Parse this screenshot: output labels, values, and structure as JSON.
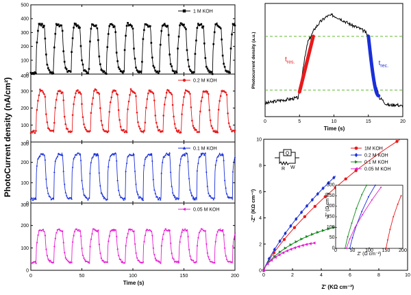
{
  "chart_data": [
    {
      "type": "line",
      "panel": "transient photoresponse (stacked)",
      "xlabel": "Time (s)",
      "ylabel": "PhotoCurrent density (nA/cm²)",
      "xlim": [
        0,
        200
      ],
      "x_ticks": [
        "0",
        "50",
        "100",
        "150",
        "200"
      ],
      "series": [
        {
          "name": "1 M KOH",
          "color": "#000000",
          "marker": "square",
          "ylim": [
            0,
            500
          ],
          "y_ticks": [
            "0",
            "100",
            "200",
            "300",
            "400",
            "500"
          ],
          "period_s": 17.3,
          "first_on_s": 5,
          "on_s": 8.6,
          "low": 10,
          "high": 380,
          "onset_level": 250,
          "peak_time_frac": 0.3
        },
        {
          "name": "0.2 M KOH",
          "color": "#e8191b",
          "marker": "circle",
          "ylim": [
            0,
            400
          ],
          "y_ticks": [
            "0",
            "100",
            "200",
            "300",
            "400"
          ],
          "period_s": 17.8,
          "first_on_s": 5,
          "on_s": 8.9,
          "low": 60,
          "high": 310,
          "onset_level": 220,
          "peak_time_frac": 0.45
        },
        {
          "name": "0.1 M KOH",
          "color": "#1a2fd8",
          "marker": "triangle",
          "ylim": [
            0,
            300
          ],
          "y_ticks": [
            "0",
            "100",
            "200",
            "300"
          ],
          "period_s": 17.5,
          "first_on_s": 5,
          "on_s": 8.75,
          "low": 20,
          "high": 240,
          "onset_level": 240,
          "peak_time_frac": 0.2
        },
        {
          "name": "0.05 M KOH",
          "color": "#e61bd1",
          "marker": "triangle-left",
          "ylim": [
            0,
            300
          ],
          "y_ticks": [
            "0",
            "100",
            "200",
            "300"
          ],
          "period_s": 17.5,
          "first_on_s": 5,
          "on_s": 8.75,
          "low": 35,
          "high": 185,
          "onset_level": 150,
          "peak_time_frac": 0.4
        }
      ]
    },
    {
      "type": "line",
      "panel": "single-cycle response schematic",
      "xlabel": "Time (s)",
      "ylabel": "Photocurrent density (a.u.)",
      "xlim": [
        0,
        20
      ],
      "x_ticks": [
        "0",
        "5",
        "10",
        "15",
        "20"
      ],
      "ylim": [
        0,
        1
      ],
      "guide_lines": [
        0.22,
        0.78
      ],
      "annotations": [
        {
          "text": "t",
          "sub": "res.",
          "color": "#e8191b"
        },
        {
          "text": "t",
          "sub": "rec.",
          "color": "#1a2fd8"
        }
      ],
      "curve": {
        "x": [
          0,
          2,
          4,
          4.8,
          5.0,
          5.5,
          6.2,
          6.8,
          7.2,
          8,
          9,
          9.8,
          10.5,
          11.5,
          12.5,
          13.5,
          14.5,
          15.0,
          15.5,
          16,
          16.6,
          17,
          17.5,
          18,
          19,
          20
        ],
        "y": [
          0.08,
          0.11,
          0.13,
          0.14,
          0.2,
          0.45,
          0.72,
          0.8,
          0.86,
          0.93,
          0.99,
          1.0,
          0.98,
          0.94,
          0.9,
          0.87,
          0.83,
          0.78,
          0.55,
          0.3,
          0.14,
          0.12,
          0.08,
          0.06,
          0.07,
          0.05
        ]
      },
      "rise_segment": {
        "x": [
          5.0,
          7.0
        ],
        "y": [
          0.2,
          0.78
        ],
        "color": "#e8191b"
      },
      "decay_segment": {
        "x": [
          15.0,
          16.5
        ],
        "y": [
          0.78,
          0.16
        ],
        "color": "#1a2fd8"
      }
    },
    {
      "type": "scatter",
      "panel": "Nyquist plot",
      "xlabel": "Z' (KΩ cm⁻²)",
      "ylabel": "-Z'' (KΩ cm⁻²)",
      "xlim": [
        0,
        10
      ],
      "ylim": [
        0,
        10
      ],
      "x_ticks": [
        "0",
        "2",
        "4",
        "6",
        "8",
        "10"
      ],
      "y_ticks": [
        "0",
        "2",
        "4",
        "6",
        "8",
        "10"
      ],
      "legend_placement": "top-right",
      "circuit_labels": [
        "Q",
        "R",
        "W"
      ],
      "series": [
        {
          "name": "1M KOH",
          "color": "#e8191b",
          "marker": "circle",
          "x_end": 9.5,
          "y_end": 10.0,
          "curvature": 0.35,
          "line_only_after": 6.6
        },
        {
          "name": "0.2 M KOH",
          "color": "#1a2fd8",
          "marker": "diamond",
          "x_end": 5.0,
          "y_end": 7.2,
          "curvature": 0.3
        },
        {
          "name": "0.1 M KOH",
          "color": "#138a1e",
          "marker": "triangle-right",
          "x_end": 5.0,
          "y_end": 3.3,
          "curvature": 0.6
        },
        {
          "name": "0.05 M KOH",
          "color": "#e61bd1",
          "marker": "triangle-left",
          "x_end": 3.6,
          "y_end": 2.1,
          "curvature": 0.7
        }
      ],
      "inset": {
        "xlabel": "Z' (Ω cm⁻²)",
        "ylabel": "-Z'' (Ω cm⁻²)",
        "xlim": [
          0,
          200
        ],
        "ylim": [
          0,
          300
        ],
        "x_ticks": [
          "0",
          "50",
          "100",
          "150",
          "200"
        ],
        "y_ticks": [
          "0",
          "50",
          "100",
          "150",
          "200",
          "250",
          "300"
        ],
        "series": [
          {
            "name": "1M KOH",
            "color": "#e8191b",
            "x": [
              150,
              155,
              162,
              172,
              185,
              195
            ],
            "y": [
              0,
              40,
              90,
              150,
              210,
              250
            ]
          },
          {
            "name": "0.2 M KOH",
            "color": "#1a2fd8",
            "x": [
              42,
              50,
              62,
              78,
              98,
              118
            ],
            "y": [
              0,
              50,
              110,
              175,
              245,
              300
            ]
          },
          {
            "name": "0.1 M KOH",
            "color": "#138a1e",
            "x": [
              28,
              36,
              48,
              62,
              78,
              92
            ],
            "y": [
              0,
              55,
              120,
              190,
              255,
              300
            ]
          },
          {
            "name": "0.05 M KOH",
            "color": "#e61bd1",
            "x": [
              32,
              42,
              58,
              80,
              108,
              135
            ],
            "y": [
              0,
              45,
              100,
              160,
              230,
              290
            ]
          }
        ]
      }
    }
  ]
}
